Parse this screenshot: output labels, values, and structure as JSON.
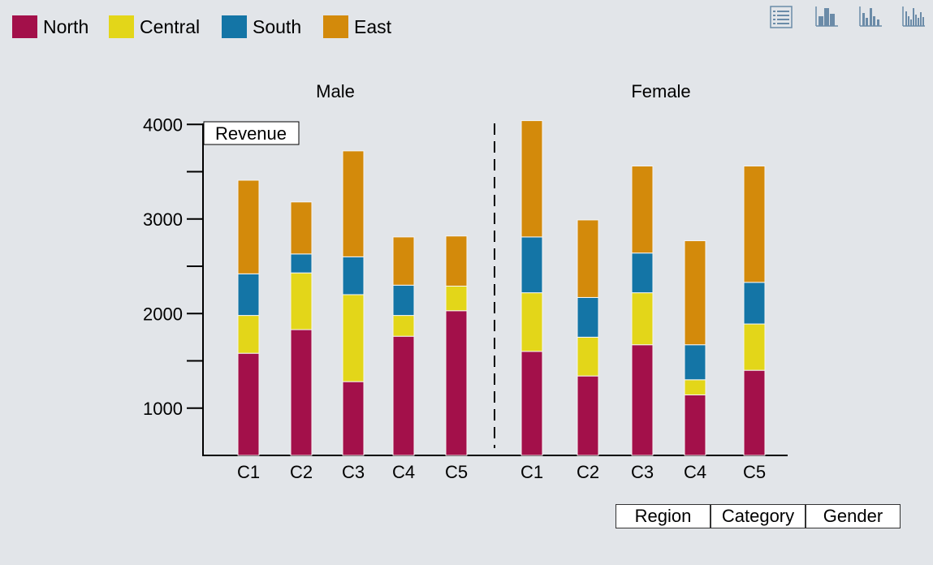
{
  "legend": [
    {
      "label": "North",
      "color": "#a3104a"
    },
    {
      "label": "Central",
      "color": "#e3d619"
    },
    {
      "label": "South",
      "color": "#1475a6"
    },
    {
      "label": "East",
      "color": "#d38a0b"
    }
  ],
  "toolbar": {
    "icons": [
      "table-view-icon",
      "bar-chart-icon",
      "grouped-bar-chart-icon",
      "dense-bar-chart-icon"
    ]
  },
  "dimension_buttons": {
    "region": "Region",
    "category": "Category",
    "gender": "Gender"
  },
  "chart_data": {
    "type": "bar",
    "stacked": true,
    "ylabel": "Revenue",
    "ylim": [
      500,
      4000
    ],
    "yticks": [
      1000,
      2000,
      3000,
      4000
    ],
    "y_minor_ticks": [
      1500,
      2500,
      3500
    ],
    "categories": [
      "C1",
      "C2",
      "C3",
      "C4",
      "C5"
    ],
    "panels": [
      {
        "title": "Male",
        "series": [
          {
            "name": "North",
            "values": [
              1080,
              1330,
              780,
              1260,
              1530
            ]
          },
          {
            "name": "Central",
            "values": [
              400,
              600,
              920,
              220,
              260
            ]
          },
          {
            "name": "South",
            "values": [
              440,
              200,
              400,
              320,
              0
            ]
          },
          {
            "name": "East",
            "values": [
              990,
              550,
              1120,
              510,
              530
            ]
          }
        ]
      },
      {
        "title": "Female",
        "series": [
          {
            "name": "North",
            "values": [
              1100,
              840,
              1170,
              640,
              900
            ]
          },
          {
            "name": "Central",
            "values": [
              620,
              410,
              550,
              160,
              490
            ]
          },
          {
            "name": "South",
            "values": [
              590,
              420,
              420,
              370,
              440
            ]
          },
          {
            "name": "East",
            "values": [
              1230,
              820,
              920,
              1100,
              1230
            ]
          }
        ]
      }
    ]
  }
}
